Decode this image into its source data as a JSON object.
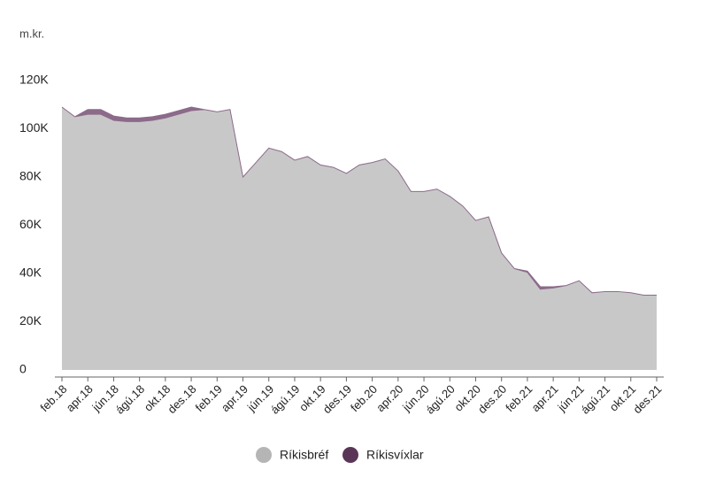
{
  "chart_data": {
    "type": "area",
    "stacked": true,
    "unit_label": "m.kr.",
    "categories": [
      "feb.18",
      null,
      "apr.18",
      null,
      "jún.18",
      null,
      "ágú.18",
      null,
      "okt.18",
      null,
      "des.18",
      null,
      "feb.19",
      null,
      "apr.19",
      null,
      "jún.19",
      null,
      "ágú.19",
      null,
      "okt.19",
      null,
      "des.19",
      null,
      "feb.20",
      null,
      "apr.20",
      null,
      "jún.20",
      null,
      "ágú.20",
      null,
      "okt.20",
      null,
      "des.20",
      null,
      "feb.21",
      null,
      "apr.21",
      null,
      "jún.21",
      null,
      "ágú.21",
      null,
      "okt.21",
      null,
      "des.21"
    ],
    "series": [
      {
        "name": "Ríkisbréf",
        "color": "#c8c8c8",
        "legend_color": "#b5b5b5",
        "values": [
          109,
          105,
          106,
          106,
          103.5,
          103,
          103,
          103.5,
          104.5,
          106,
          107.5,
          108,
          107,
          108,
          80,
          86,
          92,
          90.5,
          87,
          88.5,
          85,
          84,
          81.5,
          85,
          86,
          87.5,
          82.5,
          74,
          74,
          75,
          72,
          68,
          62,
          63.5,
          48.5,
          42,
          40.5,
          33.5,
          34,
          35,
          37,
          32,
          32.5,
          32.5,
          32,
          31,
          31
        ]
      },
      {
        "name": "Ríkisvíxlar",
        "color": "#8c6a8a",
        "legend_color": "#5b3558",
        "values": [
          0,
          0,
          2,
          2,
          1.8,
          1.5,
          1.5,
          1.5,
          1.5,
          1.5,
          1.5,
          0,
          0,
          0,
          0,
          0,
          0,
          0,
          0,
          0,
          0,
          0,
          0,
          0,
          0,
          0,
          0,
          0,
          0,
          0,
          0,
          0,
          0,
          0,
          0,
          0,
          0.5,
          1,
          0.5,
          0,
          0,
          0,
          0,
          0,
          0,
          0,
          0
        ]
      }
    ],
    "ylim": [
      0,
      120
    ],
    "yticks": [
      0,
      {
        "value": 20,
        "label": "20K"
      },
      {
        "value": 40,
        "label": "40K"
      },
      {
        "value": 60,
        "label": "60K"
      },
      {
        "value": 80,
        "label": "80K"
      },
      {
        "value": 100,
        "label": "100K"
      },
      {
        "value": 120,
        "label": "120K"
      }
    ],
    "grid": false
  }
}
